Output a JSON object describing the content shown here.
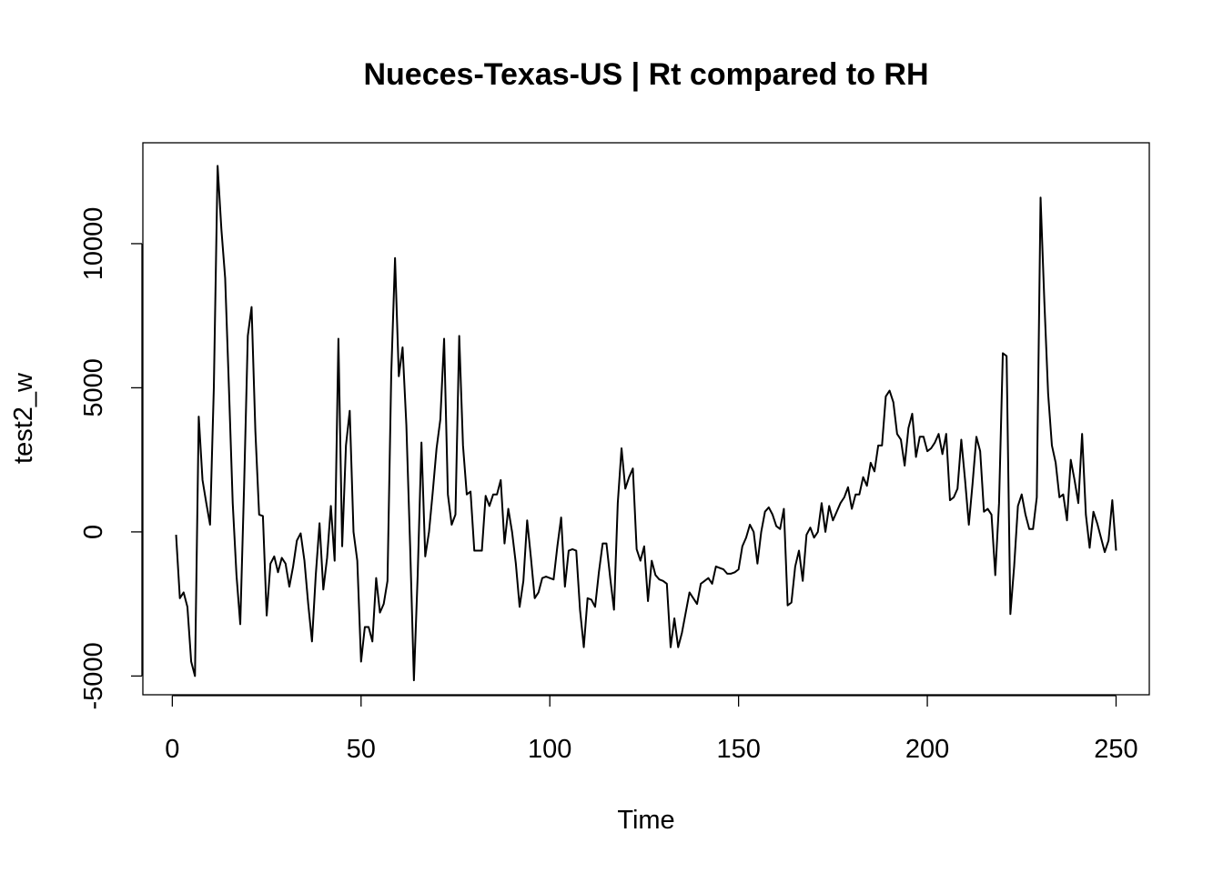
{
  "chart_data": {
    "type": "line",
    "title": "Nueces-Texas-US | Rt compared to RH",
    "xlabel": "Time",
    "ylabel": "test2_w",
    "xlim": [
      -7.8,
      258.8
    ],
    "ylim": [
      -5650,
      13500
    ],
    "x_ticks": [
      0,
      50,
      100,
      150,
      200,
      250
    ],
    "y_ticks": [
      -5000,
      0,
      5000,
      10000
    ],
    "x_tick_labels": [
      "0",
      "50",
      "100",
      "150",
      "200",
      "250"
    ],
    "y_tick_labels": [
      "-5000",
      "0",
      "5000",
      "10000"
    ],
    "grid": false,
    "series": [
      {
        "x_start": 1,
        "values": [
          -100,
          -2300,
          -2100,
          -2600,
          -4500,
          -5000,
          4000,
          1800,
          1000,
          250,
          5000,
          12700,
          10500,
          8800,
          5000,
          1000,
          -1500,
          -3200,
          1500,
          6800,
          7800,
          3500,
          600,
          550,
          -2900,
          -1100,
          -850,
          -1400,
          -900,
          -1100,
          -1900,
          -1200,
          -300,
          -50,
          -1000,
          -2500,
          -3800,
          -1500,
          300,
          -2000,
          -900,
          900,
          -1000,
          6700,
          -500,
          3000,
          4200,
          0,
          -1000,
          -4500,
          -3300,
          -3300,
          -3800,
          -1600,
          -2800,
          -2500,
          -1700,
          5500,
          9500,
          5400,
          6400,
          3700,
          -500,
          -5150,
          -1500,
          3100,
          -850,
          0,
          1400,
          2900,
          3900,
          6700,
          1300,
          250,
          600,
          6800,
          3000,
          1300,
          1400,
          -650,
          -650,
          -650,
          1250,
          900,
          1300,
          1300,
          1800,
          -400,
          800,
          0,
          -1100,
          -2600,
          -1700,
          400,
          -900,
          -2300,
          -2100,
          -1600,
          -1550,
          -1600,
          -1650,
          -500,
          500,
          -1900,
          -650,
          -600,
          -650,
          -2700,
          -4000,
          -2300,
          -2350,
          -2600,
          -1400,
          -400,
          -400,
          -1600,
          -2700,
          1000,
          2900,
          1500,
          1900,
          2200,
          -600,
          -1000,
          -500,
          -2400,
          -1000,
          -1500,
          -1650,
          -1700,
          -1800,
          -4000,
          -3000,
          -4000,
          -3500,
          -2800,
          -2100,
          -2300,
          -2500,
          -1800,
          -1700,
          -1600,
          -1800,
          -1200,
          -1250,
          -1300,
          -1450,
          -1450,
          -1400,
          -1300,
          -500,
          -200,
          250,
          0,
          -1100,
          0,
          700,
          850,
          600,
          200,
          100,
          800,
          -2550,
          -2450,
          -1200,
          -650,
          -1700,
          -100,
          150,
          -200,
          0,
          1000,
          0,
          900,
          400,
          700,
          1000,
          1200,
          1550,
          800,
          1300,
          1300,
          1900,
          1600,
          2400,
          2100,
          3000,
          3000,
          4700,
          4900,
          4500,
          3400,
          3200,
          2300,
          3600,
          4100,
          2600,
          3300,
          3300,
          2800,
          2900,
          3100,
          3400,
          2700,
          3400,
          1100,
          1200,
          1500,
          3200,
          1800,
          250,
          1700,
          3300,
          2800,
          700,
          800,
          600,
          -1500,
          1000,
          6200,
          6100,
          -2850,
          -1200,
          900,
          1300,
          600,
          100,
          100,
          1200,
          11600,
          8000,
          4800,
          3000,
          2400,
          1200,
          1300,
          400,
          2500,
          1800,
          1000,
          3400,
          600,
          -550,
          700,
          300,
          -200,
          -700,
          -300,
          1100,
          -650
        ]
      }
    ]
  }
}
